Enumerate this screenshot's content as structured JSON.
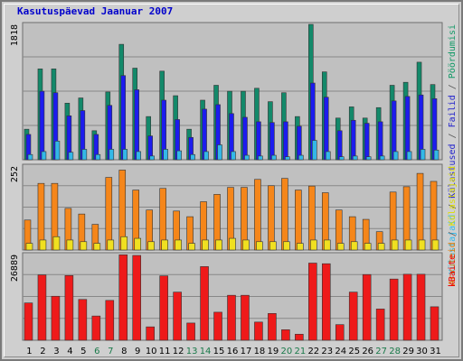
{
  "chart_data": {
    "type": "bar",
    "title": "Kasutuspäevad Jaanuar 2007",
    "categories": [
      "1",
      "2",
      "3",
      "4",
      "5",
      "6",
      "7",
      "8",
      "9",
      "10",
      "11",
      "12",
      "13",
      "14",
      "15",
      "16",
      "17",
      "18",
      "19",
      "20",
      "21",
      "22",
      "23",
      "24",
      "25",
      "26",
      "27",
      "28",
      "29",
      "30",
      "31"
    ],
    "weekend_days": [
      "6",
      "7",
      "13",
      "14",
      "20",
      "21",
      "27",
      "28"
    ],
    "grid": true,
    "panels": [
      {
        "id": "visits",
        "ymax": 1818,
        "tick_label": "1818",
        "side_labels": [
          {
            "text": "Külastajaid",
            "color": "#33bbee"
          },
          {
            "text": " / ",
            "color": "#555555"
          },
          {
            "text": "Külastused",
            "color": "#2222cc"
          },
          {
            "text": " / ",
            "color": "#555555"
          },
          {
            "text": "Failid",
            "color": "#2222cc"
          },
          {
            "text": " / ",
            "color": "#555555"
          },
          {
            "text": "Pöördumisi",
            "color": "#119966"
          }
        ],
        "series": [
          {
            "name": "Pöördumisi",
            "color": "#13896a",
            "values": [
              410,
              1220,
              1220,
              760,
              830,
              390,
              910,
              1550,
              1230,
              580,
              1190,
              860,
              410,
              800,
              1000,
              920,
              920,
              960,
              780,
              900,
              580,
              1818,
              1180,
              560,
              710,
              560,
              700,
              1000,
              1040,
              1310,
              1010
            ]
          },
          {
            "name": "Failid",
            "color": "#1c1cee",
            "values": [
              340,
              920,
              900,
              590,
              660,
              340,
              730,
              1130,
              940,
              320,
              800,
              540,
              300,
              680,
              740,
              620,
              570,
              510,
              500,
              510,
              450,
              1030,
              840,
              390,
              530,
              490,
              510,
              790,
              850,
              870,
              820
            ]
          },
          {
            "name": "Külastused",
            "color": "#33b8e8",
            "values": [
              70,
              110,
              250,
              100,
              140,
              70,
              140,
              140,
              110,
              50,
              140,
              120,
              70,
              110,
              200,
              110,
              60,
              50,
              60,
              40,
              60,
              260,
              110,
              40,
              50,
              40,
              50,
              110,
              110,
              140,
              130
            ]
          }
        ]
      },
      {
        "id": "hosts",
        "ymax": 252,
        "tick_label": "252",
        "side_labels": [
          {
            "text": "Arvuteid",
            "color": "#e07800"
          },
          {
            "text": " / ",
            "color": "#555555"
          },
          {
            "text": "Külastajaid",
            "color": "#dddd00"
          }
        ],
        "series": [
          {
            "name": "Arvuteid",
            "color": "#f5861a",
            "values": [
              90,
              200,
              200,
              125,
              108,
              77,
              218,
              240,
              180,
              120,
              185,
              117,
              100,
              145,
              167,
              188,
              188,
              212,
              193,
              215,
              180,
              192,
              172,
              120,
              100,
              92,
              55,
              174,
              190,
              230,
              206
            ]
          },
          {
            "name": "Külastajaid",
            "color": "#f0e020",
            "values": [
              20,
              30,
              40,
              30,
              25,
              20,
              30,
              40,
              35,
              25,
              30,
              30,
              20,
              30,
              30,
              35,
              30,
              25,
              25,
              25,
              20,
              30,
              30,
              20,
              25,
              20,
              20,
              30,
              30,
              30,
              30
            ]
          }
        ]
      },
      {
        "id": "bytes",
        "ymax": 26889,
        "tick_label": "26889",
        "side_labels": [
          {
            "text": "kBaite",
            "color": "#ee0000"
          }
        ],
        "series": [
          {
            "name": "kBaite",
            "color": "#ee1a1a",
            "values": [
              11700,
              20500,
              13800,
              20300,
              12800,
              7600,
              12500,
              26800,
              26600,
              4200,
              20200,
              15100,
              5400,
              23100,
              8800,
              14100,
              14100,
              5700,
              8400,
              3300,
              1900,
              24200,
              24000,
              4900,
              15100,
              20600,
              9800,
              19200,
              20700,
              20700,
              10500
            ]
          }
        ]
      }
    ]
  }
}
